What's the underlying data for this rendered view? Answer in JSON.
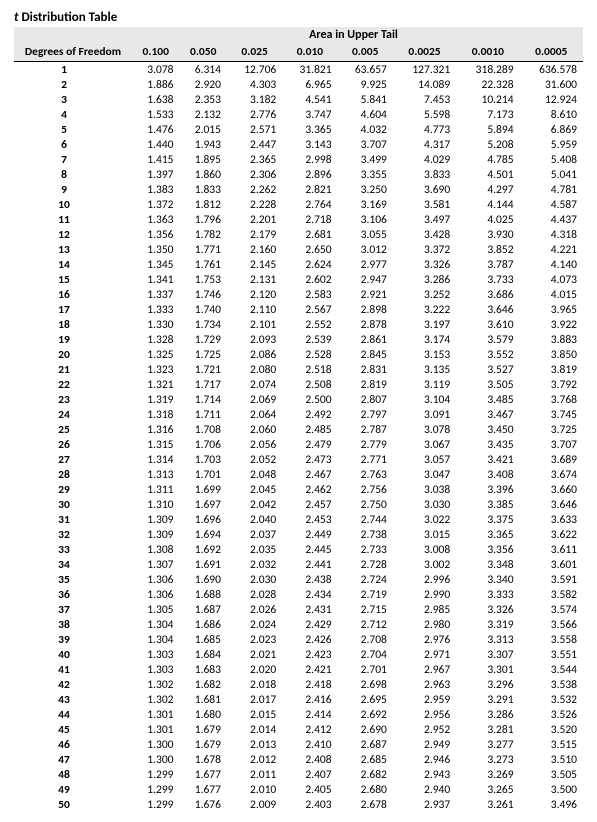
{
  "title_prefix": "t",
  "title_rest": " Distribution Table",
  "area_header": "Area in Upper Tail",
  "df_header": "Degrees of Freedom",
  "alphas": [
    "0.100",
    "0.050",
    "0.025",
    "0.010",
    "0.005",
    "0.0025",
    "0.0010",
    "0.0005"
  ],
  "rows": [
    {
      "df": "1",
      "v": [
        "3.078",
        "6.314",
        "12.706",
        "31.821",
        "63.657",
        "127.321",
        "318.289",
        "636.578"
      ]
    },
    {
      "df": "2",
      "v": [
        "1.886",
        "2.920",
        "4.303",
        "6.965",
        "9.925",
        "14.089",
        "22.328",
        "31.600"
      ]
    },
    {
      "df": "3",
      "v": [
        "1.638",
        "2.353",
        "3.182",
        "4.541",
        "5.841",
        "7.453",
        "10.214",
        "12.924"
      ]
    },
    {
      "df": "4",
      "v": [
        "1.533",
        "2.132",
        "2.776",
        "3.747",
        "4.604",
        "5.598",
        "7.173",
        "8.610"
      ]
    },
    {
      "df": "5",
      "v": [
        "1.476",
        "2.015",
        "2.571",
        "3.365",
        "4.032",
        "4.773",
        "5.894",
        "6.869"
      ]
    },
    {
      "df": "6",
      "v": [
        "1.440",
        "1.943",
        "2.447",
        "3.143",
        "3.707",
        "4.317",
        "5.208",
        "5.959"
      ]
    },
    {
      "df": "7",
      "v": [
        "1.415",
        "1.895",
        "2.365",
        "2.998",
        "3.499",
        "4.029",
        "4.785",
        "5.408"
      ]
    },
    {
      "df": "8",
      "v": [
        "1.397",
        "1.860",
        "2.306",
        "2.896",
        "3.355",
        "3.833",
        "4.501",
        "5.041"
      ]
    },
    {
      "df": "9",
      "v": [
        "1.383",
        "1.833",
        "2.262",
        "2.821",
        "3.250",
        "3.690",
        "4.297",
        "4.781"
      ]
    },
    {
      "df": "10",
      "v": [
        "1.372",
        "1.812",
        "2.228",
        "2.764",
        "3.169",
        "3.581",
        "4.144",
        "4.587"
      ]
    },
    {
      "df": "11",
      "v": [
        "1.363",
        "1.796",
        "2.201",
        "2.718",
        "3.106",
        "3.497",
        "4.025",
        "4.437"
      ]
    },
    {
      "df": "12",
      "v": [
        "1.356",
        "1.782",
        "2.179",
        "2.681",
        "3.055",
        "3.428",
        "3.930",
        "4.318"
      ]
    },
    {
      "df": "13",
      "v": [
        "1.350",
        "1.771",
        "2.160",
        "2.650",
        "3.012",
        "3.372",
        "3.852",
        "4.221"
      ]
    },
    {
      "df": "14",
      "v": [
        "1.345",
        "1.761",
        "2.145",
        "2.624",
        "2.977",
        "3.326",
        "3.787",
        "4.140"
      ]
    },
    {
      "df": "15",
      "v": [
        "1.341",
        "1.753",
        "2.131",
        "2.602",
        "2.947",
        "3.286",
        "3.733",
        "4.073"
      ]
    },
    {
      "df": "16",
      "v": [
        "1.337",
        "1.746",
        "2.120",
        "2.583",
        "2.921",
        "3.252",
        "3.686",
        "4.015"
      ]
    },
    {
      "df": "17",
      "v": [
        "1.333",
        "1.740",
        "2.110",
        "2.567",
        "2.898",
        "3.222",
        "3.646",
        "3.965"
      ]
    },
    {
      "df": "18",
      "v": [
        "1.330",
        "1.734",
        "2.101",
        "2.552",
        "2.878",
        "3.197",
        "3.610",
        "3.922"
      ]
    },
    {
      "df": "19",
      "v": [
        "1.328",
        "1.729",
        "2.093",
        "2.539",
        "2.861",
        "3.174",
        "3.579",
        "3.883"
      ]
    },
    {
      "df": "20",
      "v": [
        "1.325",
        "1.725",
        "2.086",
        "2.528",
        "2.845",
        "3.153",
        "3.552",
        "3.850"
      ]
    },
    {
      "df": "21",
      "v": [
        "1.323",
        "1.721",
        "2.080",
        "2.518",
        "2.831",
        "3.135",
        "3.527",
        "3.819"
      ]
    },
    {
      "df": "22",
      "v": [
        "1.321",
        "1.717",
        "2.074",
        "2.508",
        "2.819",
        "3.119",
        "3.505",
        "3.792"
      ]
    },
    {
      "df": "23",
      "v": [
        "1.319",
        "1.714",
        "2.069",
        "2.500",
        "2.807",
        "3.104",
        "3.485",
        "3.768"
      ]
    },
    {
      "df": "24",
      "v": [
        "1.318",
        "1.711",
        "2.064",
        "2.492",
        "2.797",
        "3.091",
        "3.467",
        "3.745"
      ]
    },
    {
      "df": "25",
      "v": [
        "1.316",
        "1.708",
        "2.060",
        "2.485",
        "2.787",
        "3.078",
        "3.450",
        "3.725"
      ]
    },
    {
      "df": "26",
      "v": [
        "1.315",
        "1.706",
        "2.056",
        "2.479",
        "2.779",
        "3.067",
        "3.435",
        "3.707"
      ]
    },
    {
      "df": "27",
      "v": [
        "1.314",
        "1.703",
        "2.052",
        "2.473",
        "2.771",
        "3.057",
        "3.421",
        "3.689"
      ]
    },
    {
      "df": "28",
      "v": [
        "1.313",
        "1.701",
        "2.048",
        "2.467",
        "2.763",
        "3.047",
        "3.408",
        "3.674"
      ]
    },
    {
      "df": "29",
      "v": [
        "1.311",
        "1.699",
        "2.045",
        "2.462",
        "2.756",
        "3.038",
        "3.396",
        "3.660"
      ]
    },
    {
      "df": "30",
      "v": [
        "1.310",
        "1.697",
        "2.042",
        "2.457",
        "2.750",
        "3.030",
        "3.385",
        "3.646"
      ]
    },
    {
      "df": "31",
      "v": [
        "1.309",
        "1.696",
        "2.040",
        "2.453",
        "2.744",
        "3.022",
        "3.375",
        "3.633"
      ]
    },
    {
      "df": "32",
      "v": [
        "1.309",
        "1.694",
        "2.037",
        "2.449",
        "2.738",
        "3.015",
        "3.365",
        "3.622"
      ]
    },
    {
      "df": "33",
      "v": [
        "1.308",
        "1.692",
        "2.035",
        "2.445",
        "2.733",
        "3.008",
        "3.356",
        "3.611"
      ]
    },
    {
      "df": "34",
      "v": [
        "1.307",
        "1.691",
        "2.032",
        "2.441",
        "2.728",
        "3.002",
        "3.348",
        "3.601"
      ]
    },
    {
      "df": "35",
      "v": [
        "1.306",
        "1.690",
        "2.030",
        "2.438",
        "2.724",
        "2.996",
        "3.340",
        "3.591"
      ]
    },
    {
      "df": "36",
      "v": [
        "1.306",
        "1.688",
        "2.028",
        "2.434",
        "2.719",
        "2.990",
        "3.333",
        "3.582"
      ]
    },
    {
      "df": "37",
      "v": [
        "1.305",
        "1.687",
        "2.026",
        "2.431",
        "2.715",
        "2.985",
        "3.326",
        "3.574"
      ]
    },
    {
      "df": "38",
      "v": [
        "1.304",
        "1.686",
        "2.024",
        "2.429",
        "2.712",
        "2.980",
        "3.319",
        "3.566"
      ]
    },
    {
      "df": "39",
      "v": [
        "1.304",
        "1.685",
        "2.023",
        "2.426",
        "2.708",
        "2.976",
        "3.313",
        "3.558"
      ]
    },
    {
      "df": "40",
      "v": [
        "1.303",
        "1.684",
        "2.021",
        "2.423",
        "2.704",
        "2.971",
        "3.307",
        "3.551"
      ]
    },
    {
      "df": "41",
      "v": [
        "1.303",
        "1.683",
        "2.020",
        "2.421",
        "2.701",
        "2.967",
        "3.301",
        "3.544"
      ]
    },
    {
      "df": "42",
      "v": [
        "1.302",
        "1.682",
        "2.018",
        "2.418",
        "2.698",
        "2.963",
        "3.296",
        "3.538"
      ]
    },
    {
      "df": "43",
      "v": [
        "1.302",
        "1.681",
        "2.017",
        "2.416",
        "2.695",
        "2.959",
        "3.291",
        "3.532"
      ]
    },
    {
      "df": "44",
      "v": [
        "1.301",
        "1.680",
        "2.015",
        "2.414",
        "2.692",
        "2.956",
        "3.286",
        "3.526"
      ]
    },
    {
      "df": "45",
      "v": [
        "1.301",
        "1.679",
        "2.014",
        "2.412",
        "2.690",
        "2.952",
        "3.281",
        "3.520"
      ]
    },
    {
      "df": "46",
      "v": [
        "1.300",
        "1.679",
        "2.013",
        "2.410",
        "2.687",
        "2.949",
        "3.277",
        "3.515"
      ]
    },
    {
      "df": "47",
      "v": [
        "1.300",
        "1.678",
        "2.012",
        "2.408",
        "2.685",
        "2.946",
        "3.273",
        "3.510"
      ]
    },
    {
      "df": "48",
      "v": [
        "1.299",
        "1.677",
        "2.011",
        "2.407",
        "2.682",
        "2.943",
        "3.269",
        "3.505"
      ]
    },
    {
      "df": "49",
      "v": [
        "1.299",
        "1.677",
        "2.010",
        "2.405",
        "2.680",
        "2.940",
        "3.265",
        "3.500"
      ]
    },
    {
      "df": "50",
      "v": [
        "1.299",
        "1.676",
        "2.009",
        "2.403",
        "2.678",
        "2.937",
        "3.261",
        "3.496"
      ]
    }
  ],
  "colors": {
    "header_bg": "#e8e8e8",
    "text": "#000000",
    "bg": "#ffffff"
  },
  "type": "table"
}
